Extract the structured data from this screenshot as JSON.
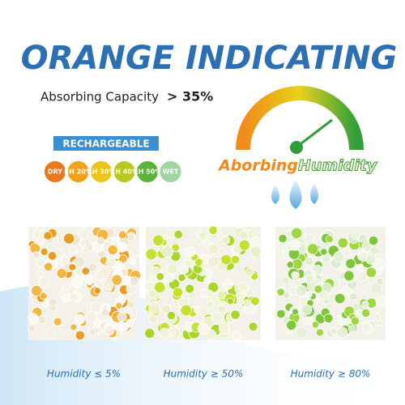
{
  "title": "ORANGE INDICATING",
  "capacity": {
    "label": "Absorbing Capacity",
    "value": "> 35%"
  },
  "badge": "RECHARGEABLE",
  "indicators": [
    "DRY",
    "RH 20%",
    "RH 30%",
    "RH 40%",
    "RH 50%",
    "WET"
  ],
  "gauge": {
    "word1": "Aborbing",
    "word2": "Humidity"
  },
  "panels": [
    "Humidity ≤ 5%",
    "Humidity ≥ 50%",
    "Humidity ≥ 80%"
  ]
}
